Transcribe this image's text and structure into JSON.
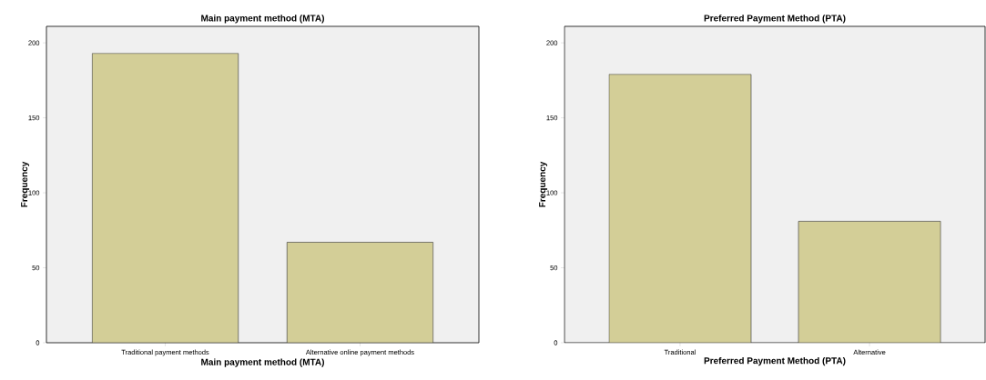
{
  "chart_data": [
    {
      "type": "bar",
      "title": "Main payment method (MTA)",
      "xlabel": "Main payment method (MTA)",
      "ylabel": "Frequency",
      "categories": [
        "Traditional  payment methods",
        "Alternative online payment methods"
      ],
      "values": [
        193,
        67
      ],
      "color": "#d3ce97",
      "ylim": [
        0,
        211
      ],
      "yticks": [
        0,
        50,
        100,
        150,
        200
      ],
      "grid": false
    },
    {
      "type": "bar",
      "title": "Preferred Payment Method (PTA)",
      "xlabel": "Preferred Payment Method (PTA)",
      "ylabel": "Frequency",
      "categories": [
        "Traditional",
        "Alternative"
      ],
      "values": [
        179,
        81
      ],
      "color": "#d3ce97",
      "ylim": [
        0,
        211
      ],
      "yticks": [
        0,
        50,
        100,
        150,
        200
      ],
      "grid": false
    }
  ]
}
